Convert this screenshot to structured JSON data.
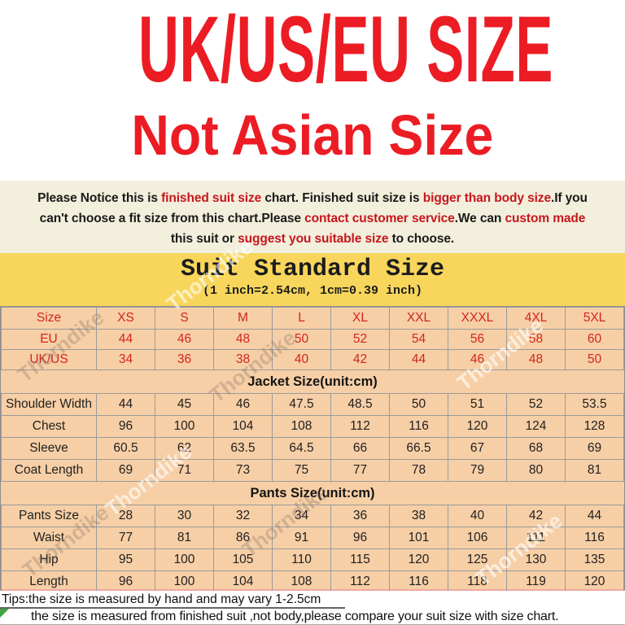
{
  "hero": {
    "title": "UK/US/EU SIZE",
    "subtitle": "Not Asian Size"
  },
  "notice": {
    "lines": [
      [
        {
          "t": "Please Notice this is ",
          "r": false
        },
        {
          "t": "finished suit size",
          "r": true
        },
        {
          "t": " chart. Finished suit size is ",
          "r": false
        },
        {
          "t": "bigger than body size",
          "r": true
        },
        {
          "t": ".If you",
          "r": false
        }
      ],
      [
        {
          "t": "can't choose a fit size from this chart.Please ",
          "r": false
        },
        {
          "t": "contact customer service",
          "r": true
        },
        {
          "t": ".We can ",
          "r": false
        },
        {
          "t": "custom made",
          "r": true
        }
      ],
      [
        {
          "t": "this suit or ",
          "r": false
        },
        {
          "t": "suggest you suitable size",
          "r": true
        },
        {
          "t": " to choose.",
          "r": false
        }
      ]
    ]
  },
  "size_chart": {
    "title": "Suit Standard Size",
    "subtitle": "(1 inch=2.54cm, 1cm=0.39 inch)",
    "columns": [
      "Size",
      "XS",
      "S",
      "M",
      "L",
      "XL",
      "XXL",
      "XXXL",
      "4XL",
      "5XL"
    ],
    "rows": [
      {
        "label": "EU",
        "values": [
          "44",
          "46",
          "48",
          "50",
          "52",
          "54",
          "56",
          "58",
          "60"
        ]
      },
      {
        "label": "UK/US",
        "values": [
          "34",
          "36",
          "38",
          "40",
          "42",
          "44",
          "46",
          "48",
          "50"
        ]
      }
    ],
    "sections": [
      {
        "title": "Jacket Size(unit:cm)",
        "rows": [
          {
            "label": "Shoulder Width",
            "values": [
              "44",
              "45",
              "46",
              "47.5",
              "48.5",
              "50",
              "51",
              "52",
              "53.5"
            ]
          },
          {
            "label": "Chest",
            "values": [
              "96",
              "100",
              "104",
              "108",
              "112",
              "116",
              "120",
              "124",
              "128"
            ]
          },
          {
            "label": "Sleeve",
            "values": [
              "60.5",
              "62",
              "63.5",
              "64.5",
              "66",
              "66.5",
              "67",
              "68",
              "69"
            ]
          },
          {
            "label": "Coat Length",
            "values": [
              "69",
              "71",
              "73",
              "75",
              "77",
              "78",
              "79",
              "80",
              "81"
            ]
          }
        ]
      },
      {
        "title": "Pants Size(unit:cm)",
        "rows": [
          {
            "label": "Pants Size",
            "values": [
              "28",
              "30",
              "32",
              "34",
              "36",
              "38",
              "40",
              "42",
              "44"
            ]
          },
          {
            "label": "Waist",
            "values": [
              "77",
              "81",
              "86",
              "91",
              "96",
              "101",
              "106",
              "111",
              "116"
            ]
          },
          {
            "label": "Hip",
            "values": [
              "95",
              "100",
              "105",
              "110",
              "115",
              "120",
              "125",
              "130",
              "135"
            ]
          },
          {
            "label": "Length",
            "values": [
              "96",
              "100",
              "104",
              "108",
              "112",
              "116",
              "118",
              "119",
              "120"
            ]
          }
        ]
      }
    ]
  },
  "tips": {
    "line1": "Tips:the size is measured by hand and may vary 1-2.5cm",
    "line2": "the size is measured from finished suit ,not body,please compare your suit size with size chart."
  },
  "watermark": "Thorndike",
  "colors": {
    "heading_red": "#ec1c24",
    "notice_red": "#c8151d",
    "notice_bg": "#f2efdc",
    "band_yellow": "#f8d65c",
    "table_peach": "#f7cfa6",
    "table_red_text": "#d3251c",
    "border_gray": "#9a9a9a",
    "green_marker": "#3fa33f"
  }
}
